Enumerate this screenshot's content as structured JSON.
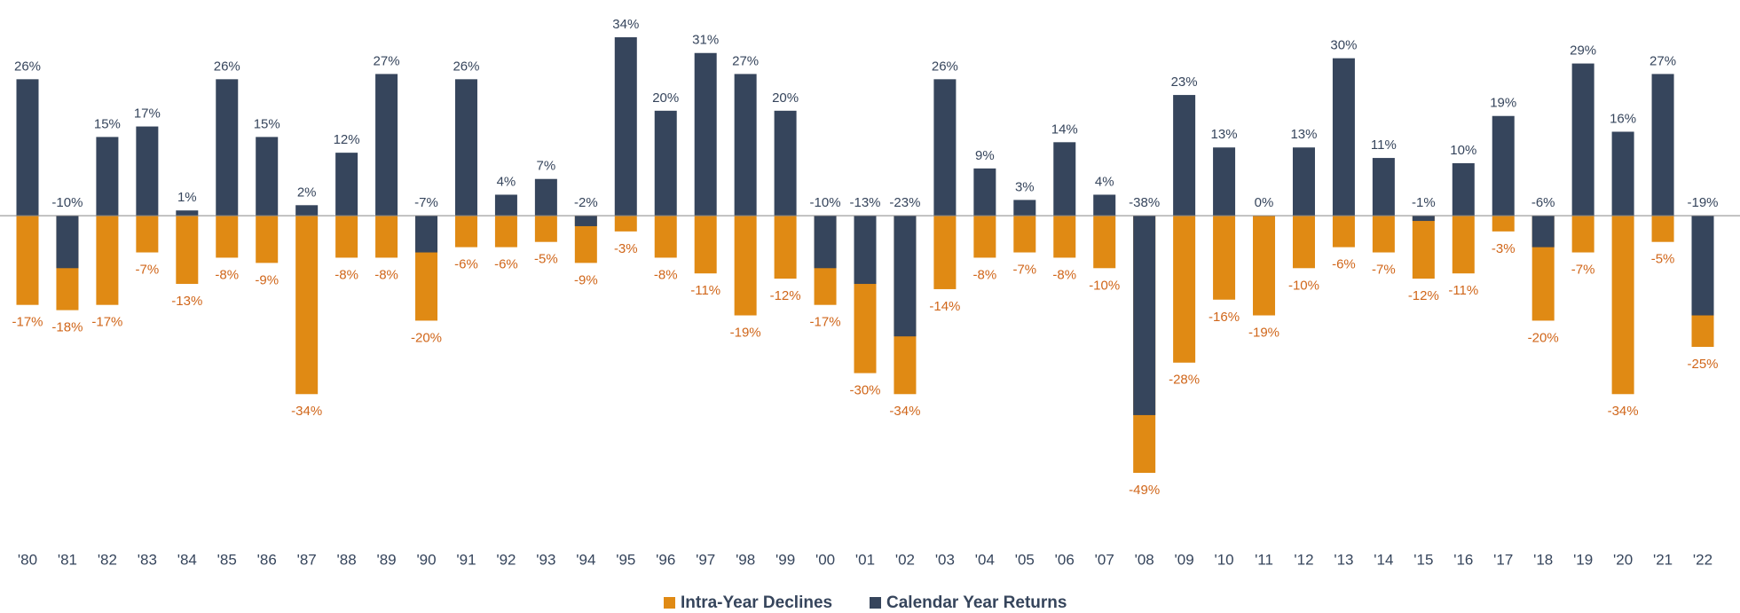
{
  "chart_data": {
    "type": "overlapping-bar",
    "categories": [
      "'80",
      "'81",
      "'82",
      "'83",
      "'84",
      "'85",
      "'86",
      "'87",
      "'88",
      "'89",
      "'90",
      "'91",
      "'92",
      "'93",
      "'94",
      "'95",
      "'96",
      "'97",
      "'98",
      "'99",
      "'00",
      "'01",
      "'02",
      "'03",
      "'04",
      "'05",
      "'06",
      "'07",
      "'08",
      "'09",
      "'10",
      "'11",
      "'12",
      "'13",
      "'14",
      "'15",
      "'16",
      "'17",
      "'18",
      "'19",
      "'20",
      "'21",
      "'22"
    ],
    "series": [
      {
        "name": "Intra-Year Declines",
        "color": "#e08a14",
        "values": [
          -17,
          -18,
          -17,
          -7,
          -13,
          -8,
          -9,
          -34,
          -8,
          -8,
          -20,
          -6,
          -6,
          -5,
          -9,
          -3,
          -8,
          -11,
          -19,
          -12,
          -17,
          -30,
          -34,
          -14,
          -8,
          -7,
          -8,
          -10,
          -49,
          -28,
          -16,
          -19,
          -10,
          -6,
          -7,
          -12,
          -11,
          -3,
          -20,
          -7,
          -34,
          -5,
          -25
        ],
        "value_labels": [
          "-17%",
          "-18%",
          "-17%",
          "-7%",
          "-13%",
          "-8%",
          "-9%",
          "-34%",
          "-8%",
          "-8%",
          "-20%",
          "-6%",
          "-6%",
          "-5%",
          "-9%",
          "-3%",
          "-8%",
          "-11%",
          "-19%",
          "-12%",
          "-17%",
          "-30%",
          "-34%",
          "-14%",
          "-8%",
          "-7%",
          "-8%",
          "-10%",
          "-49%",
          "-28%",
          "-16%",
          "-19%",
          "-10%",
          "-6%",
          "-7%",
          "-12%",
          "-11%",
          "-3%",
          "-20%",
          "-7%",
          "-34%",
          "-5%",
          "-25%"
        ]
      },
      {
        "name": "Calendar Year Returns",
        "color": "#36455c",
        "values": [
          26,
          -10,
          15,
          17,
          1,
          26,
          15,
          2,
          12,
          27,
          -7,
          26,
          4,
          7,
          -2,
          34,
          20,
          31,
          27,
          20,
          -10,
          -13,
          -23,
          26,
          9,
          3,
          14,
          4,
          -38,
          23,
          13,
          0,
          13,
          30,
          11,
          -1,
          10,
          19,
          -6,
          29,
          16,
          27,
          -19
        ],
        "value_labels": [
          "26%",
          "-10%",
          "15%",
          "17%",
          "1%",
          "26%",
          "15%",
          "2%",
          "12%",
          "27%",
          "-7%",
          "26%",
          "4%",
          "7%",
          "-2%",
          "34%",
          "20%",
          "31%",
          "27%",
          "20%",
          "-10%",
          "-13%",
          "-23%",
          "26%",
          "9%",
          "3%",
          "14%",
          "4%",
          "-38%",
          "23%",
          "13%",
          "0%",
          "13%",
          "30%",
          "11%",
          "-1%",
          "10%",
          "19%",
          "-6%",
          "29%",
          "16%",
          "27%",
          "-19%"
        ]
      }
    ]
  }
}
